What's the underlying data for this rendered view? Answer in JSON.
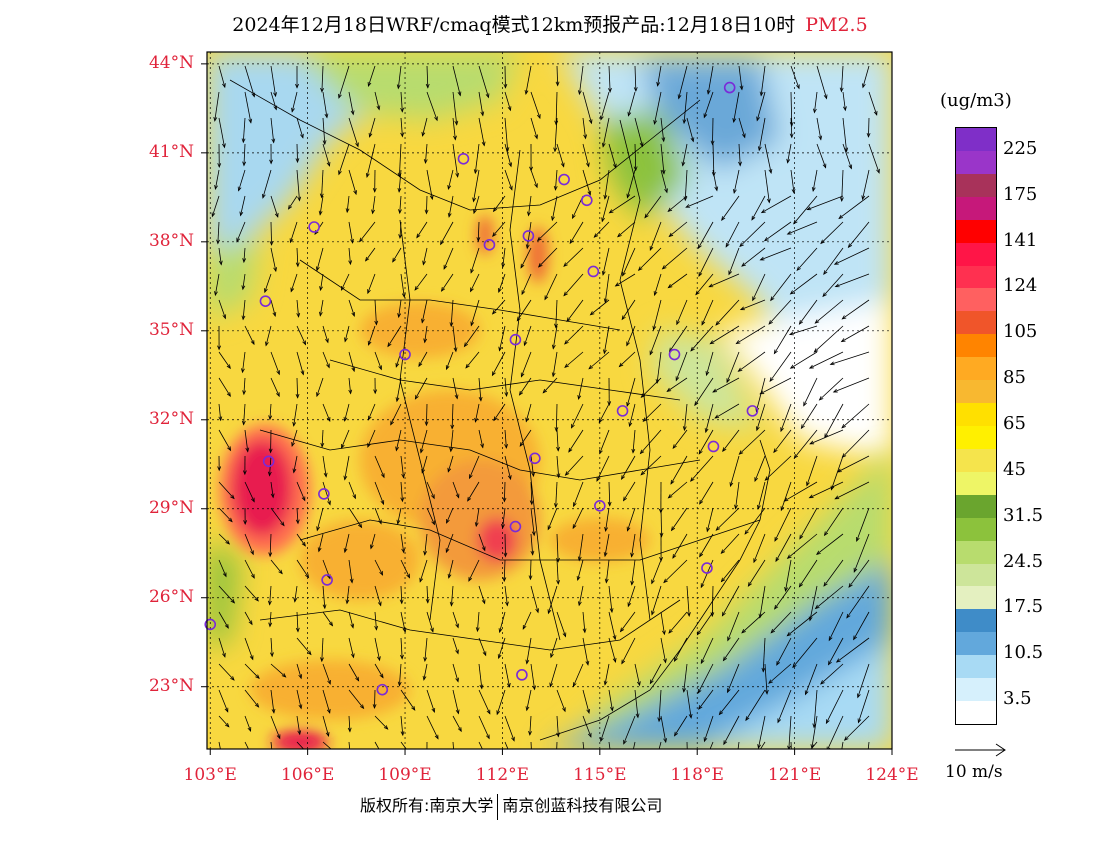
{
  "title": {
    "main": "2024年12月18日WRF/cmaq模式12km预报产品:12月18日10时",
    "pollutant": "PM2.5"
  },
  "axes": {
    "lat_labels": [
      "44°N",
      "41°N",
      "38°N",
      "35°N",
      "32°N",
      "29°N",
      "26°N",
      "23°N"
    ],
    "lat_values": [
      44,
      41,
      38,
      35,
      32,
      29,
      26,
      23
    ],
    "lon_labels": [
      "103°E",
      "106°E",
      "109°E",
      "112°E",
      "115°E",
      "118°E",
      "121°E",
      "124°E"
    ],
    "lon_values": [
      103,
      106,
      109,
      112,
      115,
      118,
      121,
      124
    ],
    "lat_range": [
      20.9,
      44.4
    ],
    "lon_range": [
      102.9,
      124.0
    ]
  },
  "legend": {
    "unit": "(ug/m3)",
    "labels": [
      "225",
      "175",
      "141",
      "124",
      "105",
      "85",
      "65",
      "45",
      "31.5",
      "24.5",
      "17.5",
      "10.5",
      "3.5"
    ],
    "colors": [
      "#7f2fc8",
      "#9a35c9",
      "#a8325a",
      "#c6187a",
      "#ff0000",
      "#ff1547",
      "#ff3050",
      "#ff6060",
      "#f0552a",
      "#ff8400",
      "#ffaa22",
      "#f8b830",
      "#ffe000",
      "#fff000",
      "#f5e44c",
      "#eef566",
      "#6aa52e",
      "#8cc23c",
      "#b8dc6e",
      "#cde59a",
      "#e4f0c0",
      "#3f8cc8",
      "#62a8dc",
      "#a8daf4",
      "#d6f0fc",
      "#ffffff"
    ]
  },
  "wind_reference": "10 m/s",
  "copyright": {
    "left": "版权所有:南京大学",
    "right": "南京创蓝科技有限公司"
  },
  "stations": [
    {
      "lon": 119.0,
      "lat": 43.2
    },
    {
      "lon": 110.8,
      "lat": 40.8
    },
    {
      "lon": 113.9,
      "lat": 40.1
    },
    {
      "lon": 114.6,
      "lat": 39.4
    },
    {
      "lon": 106.2,
      "lat": 38.5
    },
    {
      "lon": 111.6,
      "lat": 37.9
    },
    {
      "lon": 112.8,
      "lat": 38.2
    },
    {
      "lon": 114.8,
      "lat": 37.0
    },
    {
      "lon": 104.7,
      "lat": 36.0
    },
    {
      "lon": 112.4,
      "lat": 34.7
    },
    {
      "lon": 109.0,
      "lat": 34.2
    },
    {
      "lon": 117.3,
      "lat": 34.2
    },
    {
      "lon": 115.7,
      "lat": 32.3
    },
    {
      "lon": 119.7,
      "lat": 32.3
    },
    {
      "lon": 118.5,
      "lat": 31.1
    },
    {
      "lon": 104.8,
      "lat": 30.6
    },
    {
      "lon": 113.0,
      "lat": 30.7
    },
    {
      "lon": 106.5,
      "lat": 29.5
    },
    {
      "lon": 115.0,
      "lat": 29.1
    },
    {
      "lon": 112.4,
      "lat": 28.4
    },
    {
      "lon": 118.3,
      "lat": 27.0
    },
    {
      "lon": 106.6,
      "lat": 26.6
    },
    {
      "lon": 103.0,
      "lat": 25.1
    },
    {
      "lon": 112.6,
      "lat": 23.4
    },
    {
      "lon": 108.3,
      "lat": 22.9
    }
  ]
}
